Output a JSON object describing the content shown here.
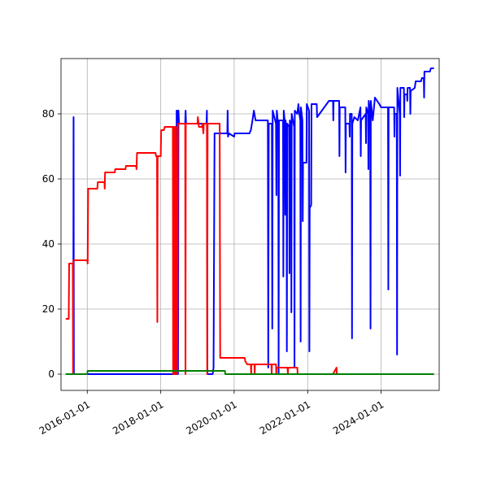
{
  "chart_data": {
    "type": "line",
    "title": "",
    "xlabel": "",
    "ylabel": "",
    "x_axis": "date",
    "xlim": [
      "2015-04-15",
      "2025-08-01"
    ],
    "ylim": [
      -5,
      97
    ],
    "x_ticks": [
      "2016-01-01",
      "2018-01-01",
      "2020-01-01",
      "2022-01-01",
      "2024-01-01"
    ],
    "y_ticks": [
      0,
      20,
      40,
      60,
      80
    ],
    "grid": true,
    "legend": "none",
    "series": [
      {
        "color": "#0000ff",
        "points": [
          [
            "2015-06-01",
            0
          ],
          [
            "2015-08-15",
            0
          ],
          [
            "2015-08-18",
            79
          ],
          [
            "2015-08-21",
            0
          ],
          [
            "2018-06-05",
            0
          ],
          [
            "2018-06-08",
            81
          ],
          [
            "2018-06-12",
            76
          ],
          [
            "2018-06-18",
            81
          ],
          [
            "2018-06-22",
            0
          ],
          [
            "2018-06-26",
            81
          ],
          [
            "2018-07-02",
            77
          ],
          [
            "2018-09-01",
            77
          ],
          [
            "2018-09-05",
            81
          ],
          [
            "2018-09-09",
            77
          ],
          [
            "2019-04-01",
            77
          ],
          [
            "2019-04-05",
            81
          ],
          [
            "2019-04-10",
            0
          ],
          [
            "2019-06-01",
            0
          ],
          [
            "2019-06-10",
            2
          ],
          [
            "2019-06-20",
            74
          ],
          [
            "2019-10-25",
            74
          ],
          [
            "2019-10-28",
            81
          ],
          [
            "2019-11-01",
            73
          ],
          [
            "2019-11-10",
            74
          ],
          [
            "2020-01-01",
            73
          ],
          [
            "2020-01-05",
            74
          ],
          [
            "2020-06-01",
            74
          ],
          [
            "2020-06-15",
            75
          ],
          [
            "2020-07-01",
            78
          ],
          [
            "2020-07-15",
            81
          ],
          [
            "2020-08-01",
            78
          ],
          [
            "2020-12-01",
            78
          ],
          [
            "2020-12-05",
            2
          ],
          [
            "2020-12-10",
            77
          ],
          [
            "2021-01-10",
            77
          ],
          [
            "2021-01-14",
            14
          ],
          [
            "2021-01-18",
            81
          ],
          [
            "2021-02-20",
            77
          ],
          [
            "2021-02-24",
            55
          ],
          [
            "2021-02-28",
            81
          ],
          [
            "2021-03-15",
            76
          ],
          [
            "2021-03-18",
            0
          ],
          [
            "2021-03-22",
            78
          ],
          [
            "2021-05-01",
            78
          ],
          [
            "2021-05-04",
            30
          ],
          [
            "2021-05-08",
            81
          ],
          [
            "2021-05-20",
            77
          ],
          [
            "2021-05-23",
            49
          ],
          [
            "2021-05-26",
            78
          ],
          [
            "2021-06-05",
            75
          ],
          [
            "2021-06-08",
            7
          ],
          [
            "2021-06-12",
            77
          ],
          [
            "2021-07-01",
            76
          ],
          [
            "2021-07-04",
            31
          ],
          [
            "2021-07-08",
            78
          ],
          [
            "2021-07-20",
            75
          ],
          [
            "2021-07-23",
            19
          ],
          [
            "2021-07-26",
            80
          ],
          [
            "2021-08-20",
            76
          ],
          [
            "2021-08-23",
            2
          ],
          [
            "2021-08-26",
            81
          ],
          [
            "2021-09-20",
            80
          ],
          [
            "2021-10-01",
            83
          ],
          [
            "2021-10-10",
            80
          ],
          [
            "2021-10-20",
            78
          ],
          [
            "2021-10-23",
            10
          ],
          [
            "2021-10-26",
            82
          ],
          [
            "2021-11-10",
            78
          ],
          [
            "2021-11-13",
            47
          ],
          [
            "2021-11-16",
            65
          ],
          [
            "2021-12-20",
            65
          ],
          [
            "2021-12-23",
            83
          ],
          [
            "2022-01-15",
            81
          ],
          [
            "2022-01-18",
            7
          ],
          [
            "2022-01-21",
            51
          ],
          [
            "2022-02-05",
            52
          ],
          [
            "2022-02-08",
            83
          ],
          [
            "2022-04-01",
            83
          ],
          [
            "2022-04-05",
            79
          ],
          [
            "2022-08-01",
            84
          ],
          [
            "2022-09-10",
            84
          ],
          [
            "2022-09-13",
            78
          ],
          [
            "2022-09-16",
            84
          ],
          [
            "2022-11-10",
            84
          ],
          [
            "2022-11-13",
            67
          ],
          [
            "2022-11-16",
            82
          ],
          [
            "2023-01-10",
            82
          ],
          [
            "2023-01-13",
            62
          ],
          [
            "2023-01-16",
            77
          ],
          [
            "2023-02-20",
            77
          ],
          [
            "2023-02-23",
            73
          ],
          [
            "2023-02-26",
            80
          ],
          [
            "2023-03-15",
            80
          ],
          [
            "2023-03-18",
            11
          ],
          [
            "2023-03-21",
            77
          ],
          [
            "2023-04-10",
            79
          ],
          [
            "2023-05-15",
            78
          ],
          [
            "2023-06-10",
            82
          ],
          [
            "2023-06-13",
            67
          ],
          [
            "2023-06-16",
            78
          ],
          [
            "2023-08-01",
            80
          ],
          [
            "2023-08-04",
            71
          ],
          [
            "2023-08-07",
            82
          ],
          [
            "2023-08-25",
            80
          ],
          [
            "2023-08-28",
            63
          ],
          [
            "2023-08-31",
            84
          ],
          [
            "2023-09-15",
            80
          ],
          [
            "2023-09-18",
            14
          ],
          [
            "2023-09-21",
            84
          ],
          [
            "2023-10-10",
            78
          ],
          [
            "2023-11-01",
            85
          ],
          [
            "2023-12-15",
            83
          ],
          [
            "2024-01-01",
            82
          ],
          [
            "2024-03-10",
            82
          ],
          [
            "2024-03-13",
            26
          ],
          [
            "2024-03-16",
            82
          ],
          [
            "2024-05-10",
            82
          ],
          [
            "2024-05-13",
            73
          ],
          [
            "2024-05-16",
            80
          ],
          [
            "2024-06-05",
            80
          ],
          [
            "2024-06-08",
            6
          ],
          [
            "2024-06-11",
            88
          ],
          [
            "2024-07-05",
            80
          ],
          [
            "2024-07-08",
            61
          ],
          [
            "2024-07-11",
            88
          ],
          [
            "2024-08-15",
            88
          ],
          [
            "2024-08-18",
            79
          ],
          [
            "2024-08-21",
            86
          ],
          [
            "2024-09-15",
            86
          ],
          [
            "2024-09-18",
            84
          ],
          [
            "2024-09-21",
            88
          ],
          [
            "2024-10-15",
            88
          ],
          [
            "2024-10-18",
            80
          ],
          [
            "2024-10-21",
            87
          ],
          [
            "2024-12-01",
            88
          ],
          [
            "2024-12-10",
            90
          ],
          [
            "2025-02-01",
            90
          ],
          [
            "2025-02-10",
            91
          ],
          [
            "2025-03-01",
            91
          ],
          [
            "2025-03-04",
            85
          ],
          [
            "2025-03-07",
            93
          ],
          [
            "2025-05-01",
            93
          ],
          [
            "2025-05-10",
            94
          ],
          [
            "2025-06-10",
            94
          ]
        ]
      },
      {
        "color": "#ff0000",
        "points": [
          [
            "2015-06-01",
            17
          ],
          [
            "2015-07-01",
            17
          ],
          [
            "2015-07-05",
            34
          ],
          [
            "2015-08-10",
            34
          ],
          [
            "2015-08-13",
            0
          ],
          [
            "2015-08-16",
            35
          ],
          [
            "2016-01-01",
            35
          ],
          [
            "2016-01-05",
            34
          ],
          [
            "2016-01-10",
            57
          ],
          [
            "2016-04-10",
            57
          ],
          [
            "2016-04-15",
            59
          ],
          [
            "2016-06-20",
            59
          ],
          [
            "2016-06-23",
            57
          ],
          [
            "2016-06-26",
            62
          ],
          [
            "2016-10-01",
            62
          ],
          [
            "2016-10-05",
            63
          ],
          [
            "2017-01-15",
            63
          ],
          [
            "2017-01-20",
            64
          ],
          [
            "2017-05-01",
            64
          ],
          [
            "2017-05-05",
            63
          ],
          [
            "2017-05-10",
            68
          ],
          [
            "2017-11-10",
            68
          ],
          [
            "2017-11-15",
            67
          ],
          [
            "2017-11-25",
            67
          ],
          [
            "2017-11-28",
            16
          ],
          [
            "2017-12-01",
            67
          ],
          [
            "2018-01-01",
            67
          ],
          [
            "2018-01-05",
            75
          ],
          [
            "2018-02-01",
            75
          ],
          [
            "2018-02-10",
            76
          ],
          [
            "2018-05-01",
            76
          ],
          [
            "2018-05-04",
            0
          ],
          [
            "2018-05-07",
            76
          ],
          [
            "2018-05-10",
            0
          ],
          [
            "2018-05-13",
            76
          ],
          [
            "2018-05-16",
            0
          ],
          [
            "2018-05-19",
            76
          ],
          [
            "2018-05-22",
            0
          ],
          [
            "2018-05-25",
            76
          ],
          [
            "2018-05-28",
            0
          ],
          [
            "2018-06-01",
            76
          ],
          [
            "2018-06-15",
            0
          ],
          [
            "2018-06-20",
            77
          ],
          [
            "2018-09-01",
            77
          ],
          [
            "2018-09-04",
            0
          ],
          [
            "2018-09-07",
            77
          ],
          [
            "2019-01-01",
            77
          ],
          [
            "2019-01-05",
            79
          ],
          [
            "2019-01-15",
            76
          ],
          [
            "2019-02-15",
            76
          ],
          [
            "2019-02-20",
            77
          ],
          [
            "2019-03-01",
            74
          ],
          [
            "2019-03-05",
            77
          ],
          [
            "2019-04-05",
            77
          ],
          [
            "2019-04-08",
            0
          ],
          [
            "2019-04-12",
            77
          ],
          [
            "2019-08-10",
            77
          ],
          [
            "2019-08-15",
            5
          ],
          [
            "2020-04-15",
            5
          ],
          [
            "2020-04-20",
            4
          ],
          [
            "2020-05-10",
            3
          ],
          [
            "2020-06-15",
            3
          ],
          [
            "2020-06-18",
            0
          ],
          [
            "2020-06-21",
            3
          ],
          [
            "2020-07-20",
            3
          ],
          [
            "2020-07-23",
            0
          ],
          [
            "2020-07-26",
            3
          ],
          [
            "2021-01-05",
            3
          ],
          [
            "2021-01-08",
            0
          ],
          [
            "2021-01-11",
            3
          ],
          [
            "2021-02-20",
            3
          ],
          [
            "2021-02-23",
            0
          ],
          [
            "2021-02-26",
            2
          ],
          [
            "2021-06-15",
            2
          ],
          [
            "2021-06-18",
            0
          ],
          [
            "2021-06-21",
            2
          ],
          [
            "2021-09-20",
            2
          ],
          [
            "2021-09-23",
            0
          ],
          [
            "2022-09-10",
            0
          ],
          [
            "2022-10-15",
            2
          ],
          [
            "2022-10-18",
            0
          ],
          [
            "2025-06-10",
            0
          ]
        ]
      },
      {
        "color": "#008000",
        "points": [
          [
            "2015-06-01",
            0
          ],
          [
            "2016-01-01",
            0
          ],
          [
            "2016-01-05",
            1
          ],
          [
            "2019-10-01",
            1
          ],
          [
            "2019-10-05",
            0
          ],
          [
            "2025-06-10",
            0
          ]
        ]
      }
    ]
  }
}
